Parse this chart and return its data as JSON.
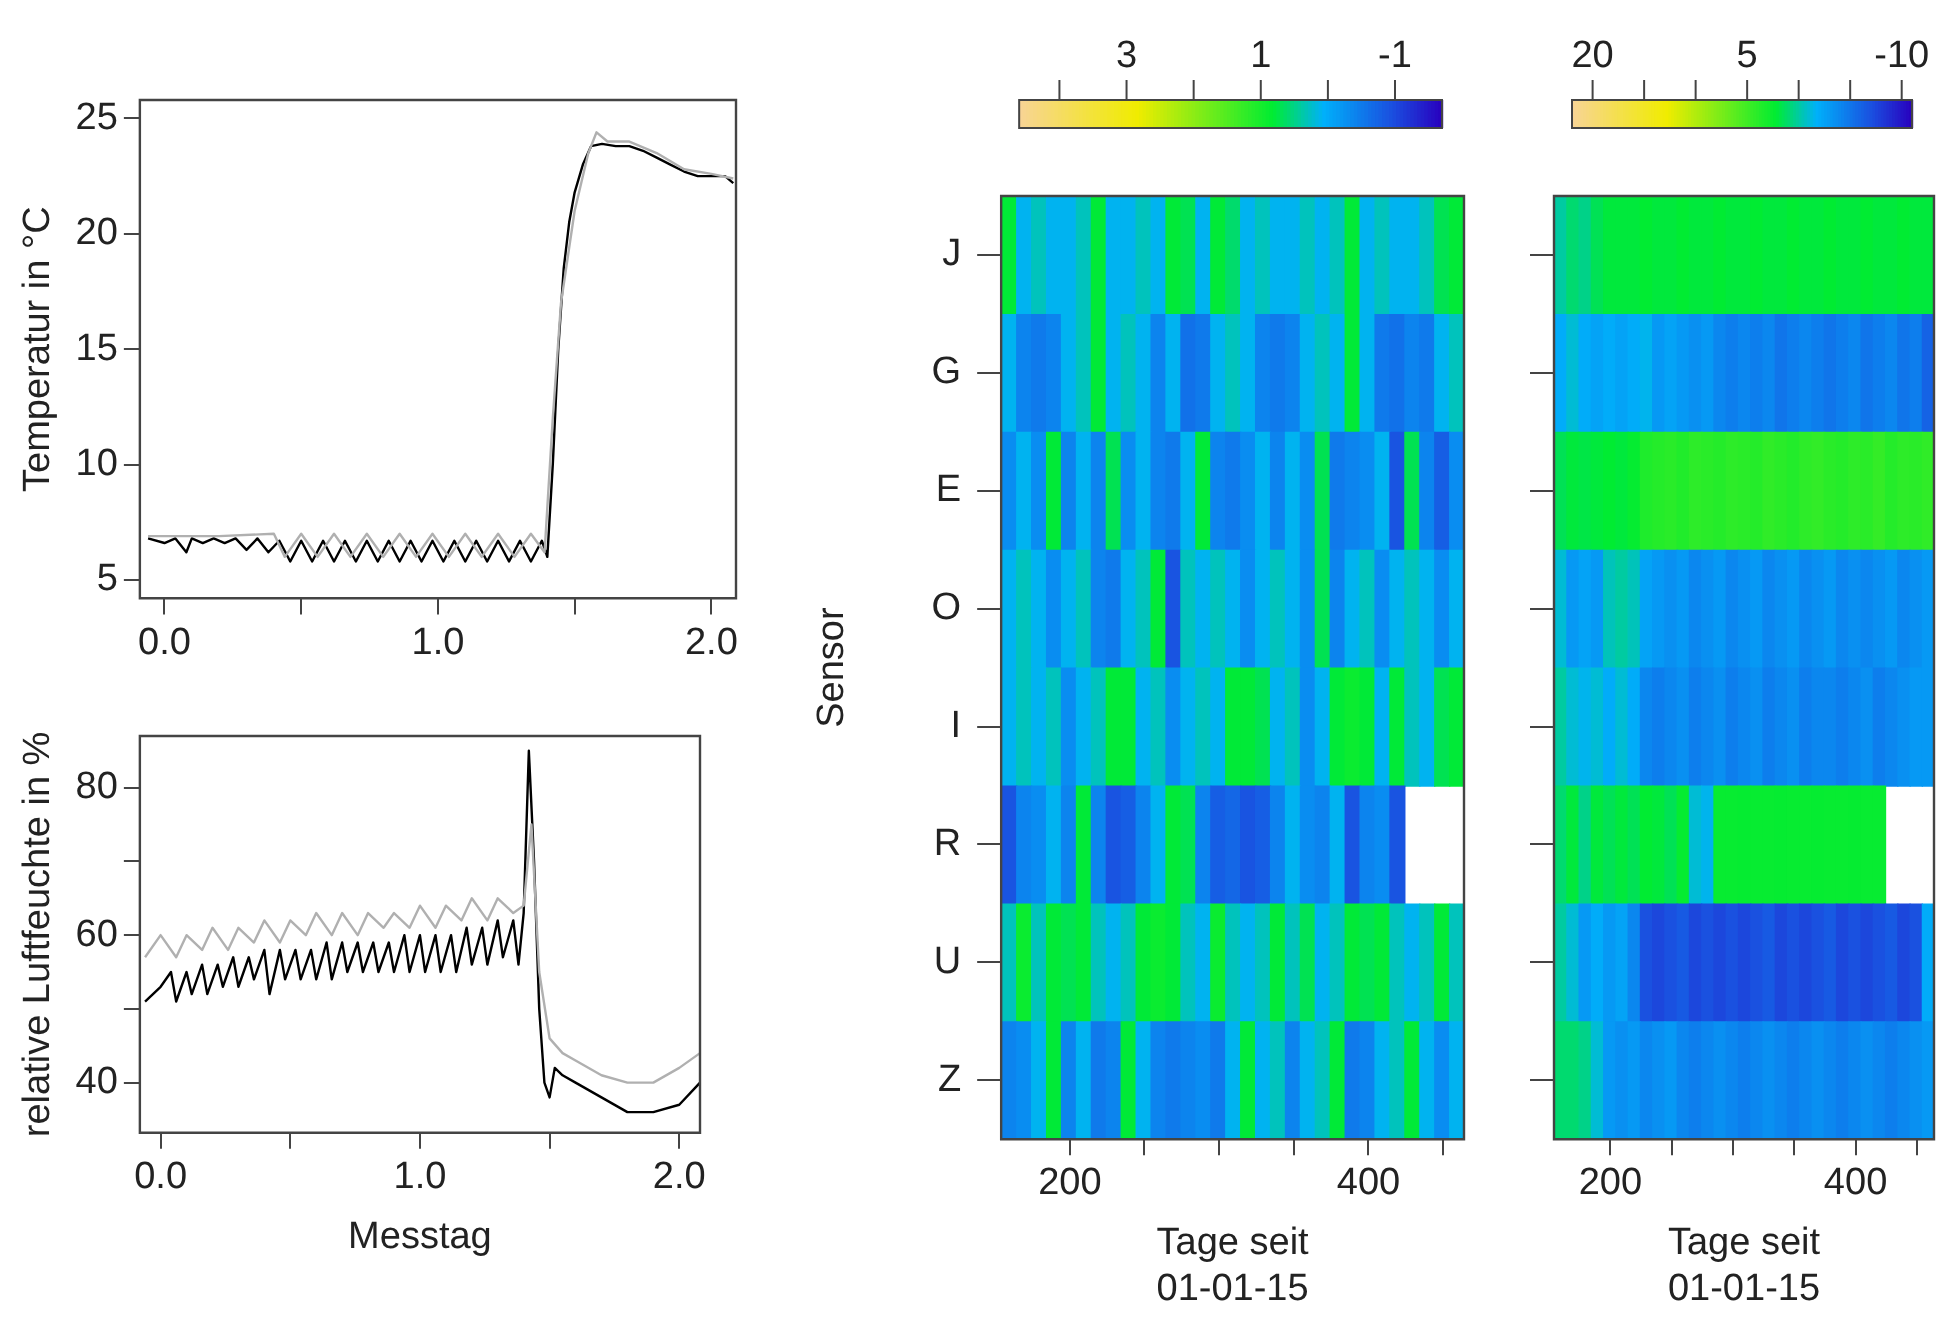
{
  "chart_data": [
    {
      "type": "line",
      "ylabel": "Temperatur in °C",
      "xlim": [
        -0.09,
        2.09
      ],
      "xticks": [
        {
          "value": 0,
          "label": "0.0"
        },
        {
          "value": 0.5,
          "label": null
        },
        {
          "value": 1,
          "label": "1.0"
        },
        {
          "value": 1.5,
          "label": null
        },
        {
          "value": 2,
          "label": "2.0"
        }
      ],
      "ylim": [
        4.2,
        25.8
      ],
      "yticks": [
        5,
        10,
        15,
        20,
        25
      ],
      "grid": false,
      "legend": false,
      "series": [
        {
          "color": "#b0b0b0",
          "x": [
            -0.06,
            0.2,
            0.4,
            0.44,
            0.5,
            0.56,
            0.62,
            0.68,
            0.74,
            0.8,
            0.86,
            0.92,
            0.98,
            1.04,
            1.1,
            1.16,
            1.22,
            1.28,
            1.34,
            1.39,
            1.42,
            1.45,
            1.5,
            1.55,
            1.58,
            1.62,
            1.7,
            1.8,
            1.9,
            2.0,
            2.08
          ],
          "values": [
            6.9,
            6.9,
            7.0,
            6.0,
            7.0,
            6.0,
            7.0,
            6.0,
            7.0,
            6.0,
            7.0,
            6.0,
            7.0,
            6.0,
            7.0,
            6.0,
            7.0,
            6.0,
            7.0,
            6.2,
            12,
            17,
            21,
            23.5,
            24.4,
            24,
            24,
            23.5,
            22.8,
            22.6,
            22.4
          ]
        },
        {
          "color": "#000000",
          "x": [
            -0.06,
            0.0,
            0.04,
            0.08,
            0.1,
            0.14,
            0.18,
            0.22,
            0.26,
            0.3,
            0.34,
            0.38,
            0.42,
            0.46,
            0.5,
            0.54,
            0.58,
            0.62,
            0.66,
            0.7,
            0.74,
            0.78,
            0.82,
            0.86,
            0.9,
            0.94,
            0.98,
            1.02,
            1.06,
            1.1,
            1.14,
            1.18,
            1.22,
            1.26,
            1.3,
            1.34,
            1.38,
            1.4,
            1.42,
            1.44,
            1.46,
            1.48,
            1.5,
            1.53,
            1.56,
            1.6,
            1.65,
            1.7,
            1.75,
            1.8,
            1.85,
            1.9,
            1.95,
            2.0,
            2.05,
            2.08
          ],
          "values": [
            6.8,
            6.6,
            6.8,
            6.2,
            6.8,
            6.6,
            6.8,
            6.6,
            6.8,
            6.3,
            6.8,
            6.2,
            6.7,
            5.8,
            6.7,
            5.8,
            6.7,
            5.8,
            6.7,
            5.8,
            6.7,
            5.8,
            6.7,
            5.8,
            6.7,
            5.8,
            6.7,
            5.8,
            6.7,
            5.8,
            6.7,
            5.8,
            6.7,
            5.8,
            6.7,
            5.8,
            6.7,
            6.0,
            10,
            15,
            18.5,
            20.5,
            21.8,
            23,
            23.8,
            23.9,
            23.8,
            23.8,
            23.6,
            23.3,
            23,
            22.7,
            22.5,
            22.5,
            22.5,
            22.2
          ]
        }
      ]
    },
    {
      "type": "line",
      "xlabel": "Messtag",
      "ylabel": "relative Luftfeuchte in %",
      "xlim": [
        -0.08,
        2.08
      ],
      "xticks": [
        {
          "value": 0,
          "label": "0.0"
        },
        {
          "value": 0.5,
          "label": null
        },
        {
          "value": 1,
          "label": "1.0"
        },
        {
          "value": 1.5,
          "label": null
        },
        {
          "value": 2,
          "label": "2.0"
        }
      ],
      "ylim": [
        33.2,
        87
      ],
      "yticks": [
        40,
        {
          "value": 50,
          "label": null
        },
        60,
        {
          "value": 70,
          "label": null
        },
        80
      ],
      "grid": false,
      "legend": false,
      "series": [
        {
          "color": "#b0b0b0",
          "x": [
            -0.06,
            0.0,
            0.06,
            0.1,
            0.16,
            0.2,
            0.26,
            0.3,
            0.36,
            0.4,
            0.46,
            0.5,
            0.56,
            0.6,
            0.66,
            0.7,
            0.76,
            0.8,
            0.86,
            0.9,
            0.96,
            1.0,
            1.06,
            1.1,
            1.16,
            1.2,
            1.26,
            1.3,
            1.36,
            1.4,
            1.43,
            1.46,
            1.5,
            1.55,
            1.6,
            1.7,
            1.8,
            1.9,
            2.0,
            2.08
          ],
          "values": [
            57,
            60,
            57,
            60,
            58,
            61,
            58,
            61,
            59,
            62,
            59,
            62,
            60,
            63,
            60,
            63,
            60,
            63,
            61,
            63,
            61,
            64,
            61,
            64,
            62,
            65,
            62,
            65,
            63,
            64,
            75,
            55,
            46,
            44,
            43,
            41,
            40,
            40,
            42,
            44
          ]
        },
        {
          "color": "#000000",
          "x": [
            -0.06,
            0.0,
            0.04,
            0.06,
            0.1,
            0.12,
            0.16,
            0.18,
            0.22,
            0.24,
            0.28,
            0.3,
            0.34,
            0.36,
            0.4,
            0.42,
            0.46,
            0.48,
            0.52,
            0.54,
            0.58,
            0.6,
            0.64,
            0.66,
            0.7,
            0.72,
            0.76,
            0.78,
            0.82,
            0.84,
            0.88,
            0.9,
            0.94,
            0.96,
            1.0,
            1.02,
            1.06,
            1.08,
            1.12,
            1.14,
            1.18,
            1.2,
            1.24,
            1.26,
            1.3,
            1.32,
            1.36,
            1.38,
            1.4,
            1.42,
            1.44,
            1.46,
            1.48,
            1.5,
            1.52,
            1.55,
            1.6,
            1.7,
            1.8,
            1.9,
            2.0,
            2.08
          ],
          "values": [
            51,
            53,
            55,
            51,
            55,
            52,
            56,
            52,
            56,
            53,
            57,
            53,
            57,
            54,
            58,
            52,
            58,
            54,
            58,
            54,
            58,
            54,
            59,
            54,
            59,
            55,
            59,
            55,
            59,
            55,
            59,
            55,
            60,
            55,
            60,
            55,
            60,
            55,
            60,
            55,
            61,
            56,
            61,
            56,
            62,
            57,
            62,
            56,
            63,
            85,
            70,
            50,
            40,
            38,
            42,
            41,
            40,
            38,
            36,
            36,
            37,
            40
          ]
        }
      ]
    },
    {
      "type": "heatmap",
      "xlabel": "Tage seit\n01-01-15",
      "ylabel": "Sensor",
      "x": [
        159,
        169,
        179,
        189,
        199,
        209,
        219,
        229,
        239,
        249,
        259,
        269,
        279,
        289,
        299,
        309,
        319,
        329,
        339,
        349,
        359,
        369,
        379,
        389,
        399,
        409,
        419,
        429,
        439,
        449,
        459
      ],
      "xlim": [
        154,
        464
      ],
      "xticks": [
        {
          "value": 200,
          "label": "200"
        },
        {
          "value": 250,
          "label": null
        },
        {
          "value": 300,
          "label": null
        },
        {
          "value": 350,
          "label": null
        },
        {
          "value": 400,
          "label": "400"
        },
        {
          "value": 450,
          "label": null
        }
      ],
      "y_categories": [
        "J",
        "G",
        "E",
        "O",
        "I",
        "R",
        "U",
        "Z"
      ],
      "clim": [
        4.6,
        -1.7
      ],
      "cticks": [
        {
          "value": 4,
          "label": null
        },
        3,
        {
          "value": 2,
          "label": null
        },
        1,
        {
          "value": 0,
          "label": null
        },
        -1
      ],
      "cells": [
        [
          0.8,
          0.1,
          0.3,
          0.1,
          0.1,
          0.3,
          0.8,
          0.1,
          0.1,
          0.3,
          0.1,
          0.8,
          0.7,
          0.1,
          0.8,
          0.6,
          0.1,
          0.3,
          0.1,
          0.1,
          0.3,
          0.1,
          0.3,
          0.8,
          0.1,
          0.3,
          0.1,
          0.1,
          0.3,
          0.7,
          0.8
        ],
        [
          0.1,
          -0.4,
          -0.5,
          -0.4,
          0.1,
          0.3,
          0.8,
          0.1,
          0.3,
          0.1,
          -0.4,
          0.1,
          -0.6,
          -0.5,
          0.1,
          0.3,
          0.1,
          -0.4,
          -0.5,
          -0.4,
          0.1,
          0.3,
          0.1,
          0.8,
          0.1,
          -0.5,
          -0.6,
          -0.4,
          -0.5,
          0.1,
          0.3
        ],
        [
          -0.3,
          0.1,
          -0.3,
          0.8,
          -0.4,
          0.1,
          -0.4,
          0.7,
          -0.3,
          0.1,
          -0.4,
          -0.5,
          0.1,
          0.8,
          -0.4,
          -0.5,
          -0.3,
          0.1,
          -0.4,
          0.1,
          -0.3,
          0.7,
          -0.5,
          -0.4,
          -0.3,
          0.1,
          -0.9,
          0.7,
          -0.4,
          -0.8,
          -0.3
        ],
        [
          0.1,
          0.3,
          0.1,
          -0.3,
          0.1,
          0.3,
          -0.4,
          -0.5,
          0.1,
          0.3,
          0.8,
          -0.9,
          0.3,
          0.1,
          0.3,
          0.1,
          -0.3,
          0.1,
          0.3,
          0.1,
          -0.3,
          0.7,
          -0.4,
          0.1,
          0.3,
          -0.3,
          0.1,
          0.3,
          0.1,
          -0.3,
          0.1
        ],
        [
          0.1,
          0.3,
          0.1,
          0.3,
          -0.3,
          0.1,
          0.3,
          0.8,
          0.8,
          0.1,
          0.3,
          -0.3,
          0.1,
          0.3,
          0.1,
          0.8,
          0.8,
          0.7,
          0.1,
          0.3,
          -0.3,
          0.1,
          0.8,
          0.9,
          0.8,
          0.1,
          0.8,
          0.3,
          0.1,
          0.7,
          0.8
        ],
        [
          -0.9,
          -0.4,
          -0.3,
          0.1,
          -0.4,
          0.8,
          -0.4,
          -0.9,
          -0.8,
          -0.4,
          0.1,
          0.8,
          0.7,
          -0.4,
          -0.8,
          -0.7,
          -0.9,
          -0.8,
          -0.4,
          0.1,
          -0.3,
          -0.4,
          0.1,
          -0.9,
          -0.4,
          -0.3,
          -0.9,
          null,
          null,
          null,
          null
        ],
        [
          0.3,
          0.9,
          0.3,
          0.8,
          0.7,
          0.8,
          0.3,
          0.1,
          0.3,
          0.8,
          0.9,
          0.8,
          0.3,
          0.1,
          0.9,
          0.3,
          0.1,
          0.3,
          0.8,
          0.3,
          0.7,
          0.1,
          0.3,
          0.8,
          0.7,
          0.8,
          0.3,
          0.1,
          0.3,
          0.8,
          0.3
        ],
        [
          -0.4,
          -0.3,
          0.1,
          0.8,
          -0.4,
          0.1,
          -0.5,
          -0.4,
          0.8,
          0.1,
          -0.4,
          -0.5,
          -0.4,
          -0.3,
          -0.5,
          0.1,
          0.8,
          0.1,
          0.3,
          -0.4,
          0.1,
          0.3,
          0.8,
          -0.5,
          -0.4,
          0.1,
          0.3,
          0.8,
          0.1,
          -0.3,
          0.1
        ]
      ]
    },
    {
      "type": "heatmap",
      "xlabel": "Tage seit\n01-01-15",
      "x": [
        159,
        169,
        179,
        189,
        199,
        209,
        219,
        229,
        239,
        249,
        259,
        269,
        279,
        289,
        299,
        309,
        319,
        329,
        339,
        349,
        359,
        369,
        379,
        389,
        399,
        409,
        419,
        429,
        439,
        449,
        459
      ],
      "xlim": [
        154,
        464
      ],
      "xticks": [
        {
          "value": 200,
          "label": "200"
        },
        {
          "value": 250,
          "label": null
        },
        {
          "value": 300,
          "label": null
        },
        {
          "value": 350,
          "label": null
        },
        {
          "value": 400,
          "label": "400"
        },
        {
          "value": 450,
          "label": null
        }
      ],
      "y_categories": [
        null,
        null,
        null,
        null,
        null,
        null,
        null,
        null
      ],
      "clim": [
        22,
        -11
      ],
      "cticks": [
        20,
        {
          "value": 15,
          "label": null
        },
        {
          "value": 10,
          "label": null
        },
        5,
        {
          "value": 0,
          "label": null
        },
        {
          "value": -5,
          "label": null
        },
        -10
      ],
      "cells": [
        [
          0,
          1,
          0.5,
          1.5,
          2,
          2,
          2,
          2.2,
          2,
          2,
          2.2,
          2,
          2,
          2.2,
          2,
          2,
          2.2,
          2,
          2,
          2.2,
          2,
          2,
          2.2,
          2,
          2,
          2.2,
          2,
          2,
          2.2,
          2,
          2
        ],
        [
          -2,
          -1,
          -2,
          -2.5,
          -2,
          -2.5,
          -2,
          -1.5,
          -3,
          -2.5,
          -3,
          -3.5,
          -3,
          -4,
          -4.5,
          -4,
          -4.5,
          -4,
          -5,
          -4.5,
          -4,
          -4.5,
          -5,
          -4.5,
          -4,
          -5,
          -4.5,
          -4,
          -5,
          -4.5,
          -6
        ],
        [
          1.5,
          2,
          1.8,
          2,
          2.2,
          2,
          2.4,
          3.5,
          3.8,
          4,
          3.6,
          4.2,
          4,
          3.8,
          4.2,
          4,
          3.8,
          4.3,
          4,
          3.7,
          4.2,
          4.4,
          4,
          3.8,
          4.2,
          4,
          4.5,
          3.8,
          4.2,
          4,
          4.3
        ],
        [
          -1,
          -3,
          -2.5,
          -3,
          -0.5,
          0,
          -0.5,
          -2.5,
          -3,
          -3.5,
          -3,
          -4,
          -3.5,
          -3,
          -4,
          -3.5,
          -3,
          -4,
          -3.5,
          -3,
          -4,
          -3.5,
          -3,
          -4,
          -3.5,
          -4,
          -3.5,
          -3,
          -4,
          -3.5,
          -3
        ],
        [
          0,
          -1,
          -1.5,
          -1,
          -2,
          -1,
          -2,
          -4,
          -4.5,
          -4,
          -3.5,
          -4.5,
          -4,
          -3.5,
          -4.5,
          -4,
          -3.5,
          -4.5,
          -4,
          -3.5,
          -4.5,
          -4,
          -4,
          -4.5,
          -4,
          -3.5,
          -4.5,
          -4,
          -3.5,
          -3,
          -3
        ],
        [
          1,
          2,
          0.5,
          2,
          1.5,
          2,
          1.5,
          2.2,
          2,
          1.5,
          2.4,
          -1,
          -1.5,
          2.5,
          2.5,
          2.4,
          2.5,
          2.5,
          2.4,
          2.5,
          2.5,
          2.4,
          2.5,
          2.5,
          2.4,
          2.5,
          2.5,
          null,
          null,
          null,
          null
        ],
        [
          0,
          -1,
          -3,
          -2,
          -3,
          -2.5,
          -4,
          -7,
          -7.5,
          -7,
          -6.5,
          -7.5,
          -7,
          -7.5,
          -7,
          -7.5,
          -7,
          -6.5,
          -7.5,
          -7,
          -7.5,
          -7,
          -6.5,
          -7.5,
          -7,
          -7.5,
          -7,
          -6.5,
          -7.5,
          -7,
          -2
        ],
        [
          1,
          1,
          0.5,
          -1,
          -3,
          -3.5,
          -3,
          -4,
          -3.5,
          -3,
          -4,
          -4.5,
          -4,
          -3.5,
          -4,
          -4.5,
          -4,
          -3.5,
          -4,
          -4.5,
          -4,
          -3.5,
          -4,
          -4.5,
          -4,
          -3.5,
          -4,
          -4.5,
          -4,
          -3.5,
          -3
        ]
      ]
    }
  ]
}
